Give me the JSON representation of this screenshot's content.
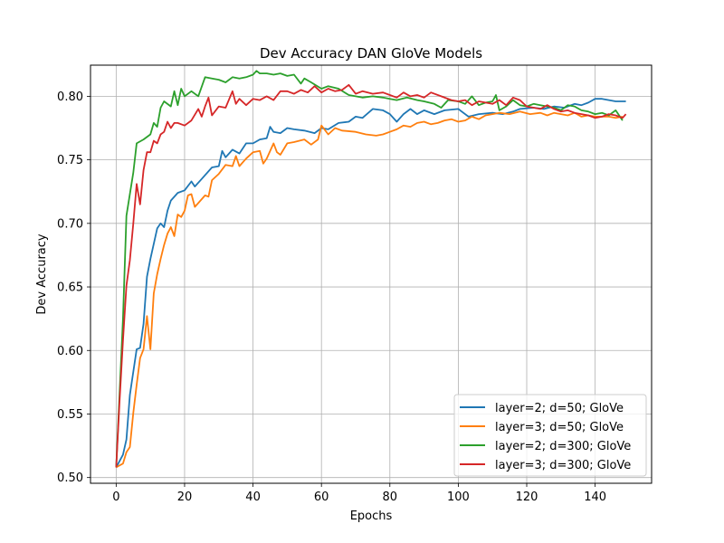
{
  "chart_data": {
    "type": "line",
    "title": "Dev Accuracy DAN GloVe Models",
    "xlabel": "Epochs",
    "ylabel": "Dev Accuracy",
    "xlim": [
      -7.5,
      156.5
    ],
    "ylim": [
      0.4955,
      0.8245
    ],
    "xticks": [
      "0",
      "20",
      "40",
      "60",
      "80",
      "100",
      "120",
      "140"
    ],
    "yticks": [
      "0.50",
      "0.55",
      "0.60",
      "0.65",
      "0.70",
      "0.75",
      "0.80"
    ],
    "grid": true,
    "legend_position": "lower-right",
    "series": [
      {
        "name": "layer=2; d=50; GloVe",
        "color": "#1f77b4",
        "points": [
          [
            0,
            0.508
          ],
          [
            2,
            0.518
          ],
          [
            3,
            0.53
          ],
          [
            4,
            0.565
          ],
          [
            6,
            0.601
          ],
          [
            7,
            0.602
          ],
          [
            8,
            0.621
          ],
          [
            9,
            0.658
          ],
          [
            10,
            0.672
          ],
          [
            12,
            0.696
          ],
          [
            13,
            0.7
          ],
          [
            14,
            0.697
          ],
          [
            15,
            0.71
          ],
          [
            16,
            0.718
          ],
          [
            18,
            0.724
          ],
          [
            20,
            0.726
          ],
          [
            22,
            0.733
          ],
          [
            23,
            0.729
          ],
          [
            25,
            0.735
          ],
          [
            28,
            0.744
          ],
          [
            30,
            0.745
          ],
          [
            31,
            0.757
          ],
          [
            32,
            0.752
          ],
          [
            34,
            0.758
          ],
          [
            36,
            0.755
          ],
          [
            38,
            0.763
          ],
          [
            40,
            0.763
          ],
          [
            42,
            0.766
          ],
          [
            44,
            0.767
          ],
          [
            45,
            0.776
          ],
          [
            46,
            0.772
          ],
          [
            48,
            0.771
          ],
          [
            50,
            0.775
          ],
          [
            52,
            0.774
          ],
          [
            55,
            0.773
          ],
          [
            58,
            0.771
          ],
          [
            60,
            0.775
          ],
          [
            62,
            0.774
          ],
          [
            65,
            0.779
          ],
          [
            68,
            0.78
          ],
          [
            70,
            0.784
          ],
          [
            72,
            0.783
          ],
          [
            75,
            0.79
          ],
          [
            78,
            0.789
          ],
          [
            80,
            0.786
          ],
          [
            82,
            0.78
          ],
          [
            84,
            0.786
          ],
          [
            86,
            0.79
          ],
          [
            88,
            0.786
          ],
          [
            90,
            0.789
          ],
          [
            93,
            0.786
          ],
          [
            96,
            0.789
          ],
          [
            100,
            0.79
          ],
          [
            103,
            0.784
          ],
          [
            106,
            0.786
          ],
          [
            110,
            0.787
          ],
          [
            113,
            0.786
          ],
          [
            116,
            0.788
          ],
          [
            118,
            0.79
          ],
          [
            122,
            0.791
          ],
          [
            125,
            0.79
          ],
          [
            128,
            0.792
          ],
          [
            131,
            0.791
          ],
          [
            134,
            0.794
          ],
          [
            136,
            0.793
          ],
          [
            138,
            0.795
          ],
          [
            140,
            0.798
          ],
          [
            142,
            0.798
          ],
          [
            144,
            0.797
          ],
          [
            146,
            0.796
          ],
          [
            149,
            0.796
          ]
        ]
      },
      {
        "name": "layer=3; d=50; GloVe",
        "color": "#ff7f0e",
        "points": [
          [
            0,
            0.508
          ],
          [
            2,
            0.511
          ],
          [
            3,
            0.52
          ],
          [
            4,
            0.524
          ],
          [
            5,
            0.551
          ],
          [
            6,
            0.573
          ],
          [
            7,
            0.594
          ],
          [
            8,
            0.601
          ],
          [
            9,
            0.627
          ],
          [
            10,
            0.601
          ],
          [
            11,
            0.645
          ],
          [
            12,
            0.66
          ],
          [
            13,
            0.672
          ],
          [
            14,
            0.683
          ],
          [
            15,
            0.692
          ],
          [
            16,
            0.697
          ],
          [
            17,
            0.69
          ],
          [
            18,
            0.707
          ],
          [
            19,
            0.705
          ],
          [
            20,
            0.71
          ],
          [
            21,
            0.722
          ],
          [
            22,
            0.723
          ],
          [
            23,
            0.713
          ],
          [
            24,
            0.716
          ],
          [
            26,
            0.722
          ],
          [
            27,
            0.721
          ],
          [
            28,
            0.734
          ],
          [
            30,
            0.739
          ],
          [
            32,
            0.746
          ],
          [
            34,
            0.745
          ],
          [
            35,
            0.753
          ],
          [
            36,
            0.745
          ],
          [
            38,
            0.751
          ],
          [
            40,
            0.756
          ],
          [
            42,
            0.757
          ],
          [
            43,
            0.747
          ],
          [
            44,
            0.751
          ],
          [
            46,
            0.763
          ],
          [
            47,
            0.756
          ],
          [
            48,
            0.754
          ],
          [
            50,
            0.763
          ],
          [
            52,
            0.764
          ],
          [
            55,
            0.766
          ],
          [
            57,
            0.762
          ],
          [
            59,
            0.766
          ],
          [
            60,
            0.777
          ],
          [
            62,
            0.77
          ],
          [
            64,
            0.775
          ],
          [
            66,
            0.773
          ],
          [
            70,
            0.772
          ],
          [
            73,
            0.77
          ],
          [
            76,
            0.769
          ],
          [
            78,
            0.77
          ],
          [
            80,
            0.772
          ],
          [
            82,
            0.774
          ],
          [
            84,
            0.777
          ],
          [
            86,
            0.776
          ],
          [
            88,
            0.779
          ],
          [
            90,
            0.78
          ],
          [
            92,
            0.778
          ],
          [
            94,
            0.779
          ],
          [
            96,
            0.781
          ],
          [
            98,
            0.782
          ],
          [
            100,
            0.78
          ],
          [
            102,
            0.781
          ],
          [
            104,
            0.784
          ],
          [
            106,
            0.782
          ],
          [
            108,
            0.785
          ],
          [
            110,
            0.786
          ],
          [
            112,
            0.787
          ],
          [
            115,
            0.786
          ],
          [
            118,
            0.788
          ],
          [
            121,
            0.786
          ],
          [
            124,
            0.787
          ],
          [
            126,
            0.785
          ],
          [
            128,
            0.787
          ],
          [
            130,
            0.786
          ],
          [
            132,
            0.785
          ],
          [
            134,
            0.787
          ],
          [
            136,
            0.784
          ],
          [
            138,
            0.785
          ],
          [
            140,
            0.784
          ],
          [
            142,
            0.784
          ],
          [
            144,
            0.784
          ],
          [
            146,
            0.783
          ],
          [
            148,
            0.784
          ]
        ]
      },
      {
        "name": "layer=2; d=300; GloVe",
        "color": "#2ca02c",
        "points": [
          [
            0,
            0.508
          ],
          [
            2,
            0.625
          ],
          [
            3,
            0.706
          ],
          [
            5,
            0.74
          ],
          [
            6,
            0.763
          ],
          [
            8,
            0.766
          ],
          [
            10,
            0.77
          ],
          [
            11,
            0.779
          ],
          [
            12,
            0.776
          ],
          [
            13,
            0.791
          ],
          [
            14,
            0.796
          ],
          [
            16,
            0.792
          ],
          [
            17,
            0.804
          ],
          [
            18,
            0.793
          ],
          [
            19,
            0.806
          ],
          [
            20,
            0.8
          ],
          [
            22,
            0.804
          ],
          [
            24,
            0.8
          ],
          [
            26,
            0.815
          ],
          [
            28,
            0.814
          ],
          [
            30,
            0.813
          ],
          [
            32,
            0.811
          ],
          [
            34,
            0.815
          ],
          [
            36,
            0.814
          ],
          [
            38,
            0.815
          ],
          [
            40,
            0.817
          ],
          [
            41,
            0.82
          ],
          [
            42,
            0.818
          ],
          [
            44,
            0.818
          ],
          [
            46,
            0.817
          ],
          [
            48,
            0.818
          ],
          [
            50,
            0.816
          ],
          [
            52,
            0.817
          ],
          [
            54,
            0.81
          ],
          [
            55,
            0.814
          ],
          [
            57,
            0.811
          ],
          [
            60,
            0.806
          ],
          [
            62,
            0.808
          ],
          [
            65,
            0.806
          ],
          [
            68,
            0.801
          ],
          [
            70,
            0.8
          ],
          [
            72,
            0.799
          ],
          [
            75,
            0.8
          ],
          [
            78,
            0.799
          ],
          [
            80,
            0.798
          ],
          [
            82,
            0.797
          ],
          [
            85,
            0.799
          ],
          [
            88,
            0.797
          ],
          [
            90,
            0.796
          ],
          [
            93,
            0.794
          ],
          [
            95,
            0.791
          ],
          [
            97,
            0.797
          ],
          [
            100,
            0.796
          ],
          [
            102,
            0.794
          ],
          [
            104,
            0.8
          ],
          [
            106,
            0.793
          ],
          [
            108,
            0.795
          ],
          [
            110,
            0.796
          ],
          [
            111,
            0.801
          ],
          [
            112,
            0.789
          ],
          [
            114,
            0.792
          ],
          [
            116,
            0.797
          ],
          [
            118,
            0.793
          ],
          [
            120,
            0.792
          ],
          [
            122,
            0.794
          ],
          [
            124,
            0.793
          ],
          [
            126,
            0.792
          ],
          [
            128,
            0.791
          ],
          [
            130,
            0.789
          ],
          [
            132,
            0.793
          ],
          [
            134,
            0.792
          ],
          [
            136,
            0.789
          ],
          [
            138,
            0.788
          ],
          [
            140,
            0.786
          ],
          [
            142,
            0.787
          ],
          [
            144,
            0.785
          ],
          [
            146,
            0.789
          ],
          [
            148,
            0.781
          ]
        ]
      },
      {
        "name": "layer=3; d=300; GloVe",
        "color": "#d62728",
        "points": [
          [
            0,
            0.508
          ],
          [
            1,
            0.56
          ],
          [
            2,
            0.608
          ],
          [
            3,
            0.651
          ],
          [
            4,
            0.671
          ],
          [
            5,
            0.7
          ],
          [
            6,
            0.731
          ],
          [
            7,
            0.715
          ],
          [
            8,
            0.742
          ],
          [
            9,
            0.756
          ],
          [
            10,
            0.756
          ],
          [
            11,
            0.765
          ],
          [
            12,
            0.763
          ],
          [
            13,
            0.77
          ],
          [
            14,
            0.772
          ],
          [
            15,
            0.78
          ],
          [
            16,
            0.775
          ],
          [
            17,
            0.779
          ],
          [
            18,
            0.779
          ],
          [
            20,
            0.777
          ],
          [
            22,
            0.781
          ],
          [
            24,
            0.79
          ],
          [
            25,
            0.784
          ],
          [
            26,
            0.792
          ],
          [
            27,
            0.799
          ],
          [
            28,
            0.785
          ],
          [
            30,
            0.792
          ],
          [
            32,
            0.791
          ],
          [
            34,
            0.804
          ],
          [
            35,
            0.794
          ],
          [
            36,
            0.798
          ],
          [
            38,
            0.793
          ],
          [
            40,
            0.798
          ],
          [
            42,
            0.797
          ],
          [
            44,
            0.8
          ],
          [
            46,
            0.797
          ],
          [
            48,
            0.804
          ],
          [
            50,
            0.804
          ],
          [
            52,
            0.802
          ],
          [
            54,
            0.805
          ],
          [
            56,
            0.803
          ],
          [
            58,
            0.808
          ],
          [
            60,
            0.803
          ],
          [
            62,
            0.806
          ],
          [
            64,
            0.804
          ],
          [
            66,
            0.805
          ],
          [
            68,
            0.809
          ],
          [
            70,
            0.802
          ],
          [
            72,
            0.804
          ],
          [
            75,
            0.802
          ],
          [
            78,
            0.803
          ],
          [
            80,
            0.801
          ],
          [
            82,
            0.799
          ],
          [
            84,
            0.803
          ],
          [
            86,
            0.8
          ],
          [
            88,
            0.801
          ],
          [
            90,
            0.799
          ],
          [
            92,
            0.803
          ],
          [
            95,
            0.8
          ],
          [
            98,
            0.797
          ],
          [
            100,
            0.796
          ],
          [
            102,
            0.797
          ],
          [
            104,
            0.793
          ],
          [
            106,
            0.796
          ],
          [
            108,
            0.795
          ],
          [
            110,
            0.794
          ],
          [
            112,
            0.797
          ],
          [
            114,
            0.793
          ],
          [
            116,
            0.799
          ],
          [
            118,
            0.797
          ],
          [
            120,
            0.792
          ],
          [
            122,
            0.791
          ],
          [
            124,
            0.79
          ],
          [
            126,
            0.793
          ],
          [
            128,
            0.79
          ],
          [
            130,
            0.788
          ],
          [
            132,
            0.789
          ],
          [
            134,
            0.787
          ],
          [
            136,
            0.786
          ],
          [
            138,
            0.785
          ],
          [
            140,
            0.783
          ],
          [
            142,
            0.784
          ],
          [
            144,
            0.786
          ],
          [
            146,
            0.785
          ],
          [
            148,
            0.783
          ],
          [
            149,
            0.786
          ]
        ]
      }
    ]
  }
}
